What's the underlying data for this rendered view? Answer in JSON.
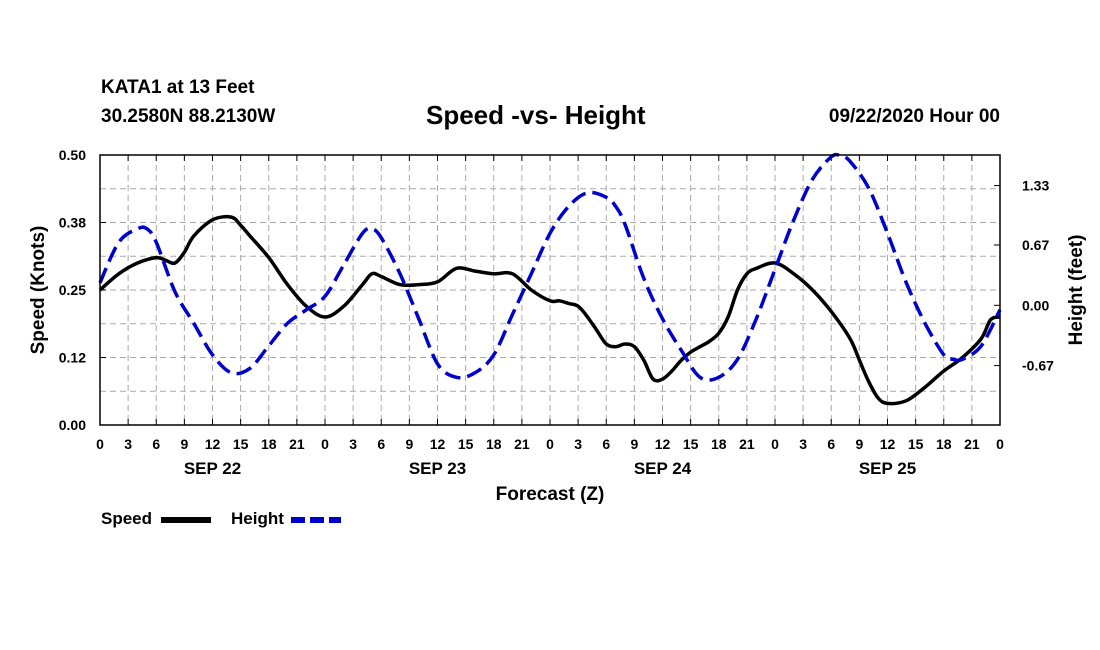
{
  "header": {
    "station": "KATA1 at 13 Feet",
    "coords": "30.2580N 88.2130W",
    "title": "Speed -vs- Height",
    "timestamp": "09/22/2020 Hour 00"
  },
  "colors": {
    "speed": "#000000",
    "height": "#0000cc",
    "grid": "#aaaaaa"
  },
  "legend": {
    "speed_label": "Speed",
    "height_label": "Height"
  },
  "chart_data": {
    "type": "line",
    "title": "Speed -vs- Height",
    "xlabel": "Forecast (Z)",
    "ylabel": "Speed (Knots)",
    "y2label": "Height (feet)",
    "xlim": [
      0,
      96
    ],
    "ylim": [
      0,
      0.5
    ],
    "y2lim": [
      -1.33,
      1.67
    ],
    "x_tick_labels": [
      "0",
      "3",
      "6",
      "9",
      "12",
      "15",
      "18",
      "21",
      "0",
      "3",
      "6",
      "9",
      "12",
      "15",
      "18",
      "21",
      "0",
      "3",
      "6",
      "9",
      "12",
      "15",
      "18",
      "21",
      "0",
      "3",
      "6",
      "9",
      "12",
      "15",
      "18",
      "21",
      "0"
    ],
    "day_labels": [
      {
        "label": "SEP 22",
        "x": 12
      },
      {
        "label": "SEP 23",
        "x": 36
      },
      {
        "label": "SEP 24",
        "x": 60
      },
      {
        "label": "SEP 25",
        "x": 84
      }
    ],
    "y_ticks": [
      "0.00",
      "0.12",
      "0.25",
      "0.38",
      "0.50"
    ],
    "y_tick_values": [
      0,
      0.125,
      0.25,
      0.375,
      0.5
    ],
    "y2_ticks": [
      "-0.67",
      "0.00",
      "0.67",
      "1.33"
    ],
    "y2_tick_values": [
      -0.67,
      0,
      0.67,
      1.33
    ],
    "series": [
      {
        "name": "Speed",
        "axis": "left",
        "style": "solid",
        "x": [
          0,
          2,
          4,
          6,
          7,
          8,
          9,
          10,
          12,
          14,
          15,
          16,
          18,
          20,
          22,
          24,
          26,
          28,
          29,
          30,
          32,
          34,
          36,
          38,
          40,
          42,
          44,
          46,
          48,
          49,
          50,
          51,
          52,
          53,
          54,
          55,
          56,
          57,
          58,
          59,
          60,
          61,
          62,
          63,
          64,
          65,
          66,
          67,
          68,
          69,
          70,
          72,
          74,
          76,
          78,
          80,
          81,
          82,
          83,
          84,
          86,
          88,
          90,
          92,
          94,
          95,
          96
        ],
        "values": [
          0.25,
          0.28,
          0.3,
          0.31,
          0.305,
          0.3,
          0.32,
          0.35,
          0.38,
          0.385,
          0.37,
          0.35,
          0.31,
          0.26,
          0.22,
          0.2,
          0.22,
          0.26,
          0.28,
          0.275,
          0.26,
          0.26,
          0.265,
          0.29,
          0.285,
          0.28,
          0.28,
          0.25,
          0.23,
          0.23,
          0.225,
          0.22,
          0.2,
          0.175,
          0.15,
          0.145,
          0.15,
          0.145,
          0.12,
          0.085,
          0.085,
          0.1,
          0.12,
          0.135,
          0.145,
          0.155,
          0.17,
          0.2,
          0.25,
          0.28,
          0.29,
          0.3,
          0.28,
          0.25,
          0.21,
          0.16,
          0.12,
          0.08,
          0.05,
          0.04,
          0.045,
          0.07,
          0.1,
          0.125,
          0.16,
          0.195,
          0.2
        ]
      },
      {
        "name": "Height",
        "axis": "right",
        "style": "dashed",
        "x": [
          0,
          2,
          4,
          5,
          6,
          8,
          10,
          12,
          14,
          16,
          18,
          20,
          22,
          24,
          26,
          28,
          29,
          30,
          32,
          34,
          36,
          38,
          40,
          42,
          44,
          46,
          48,
          50,
          52,
          54,
          55,
          56,
          58,
          60,
          62,
          64,
          66,
          68,
          70,
          72,
          74,
          76,
          78,
          79,
          80,
          82,
          84,
          86,
          88,
          90,
          91,
          92,
          94,
          96
        ],
        "values": [
          0.25,
          0.7,
          0.85,
          0.85,
          0.7,
          0.15,
          -0.2,
          -0.55,
          -0.75,
          -0.7,
          -0.45,
          -0.2,
          -0.05,
          0.1,
          0.45,
          0.8,
          0.85,
          0.75,
          0.35,
          -0.15,
          -0.65,
          -0.8,
          -0.75,
          -0.55,
          -0.1,
          0.35,
          0.8,
          1.1,
          1.25,
          1.2,
          1.1,
          0.9,
          0.3,
          -0.15,
          -0.5,
          -0.8,
          -0.8,
          -0.6,
          -0.15,
          0.4,
          0.95,
          1.4,
          1.65,
          1.66,
          1.6,
          1.3,
          0.8,
          0.25,
          -0.2,
          -0.55,
          -0.6,
          -0.6,
          -0.45,
          -0.05
        ]
      }
    ]
  }
}
